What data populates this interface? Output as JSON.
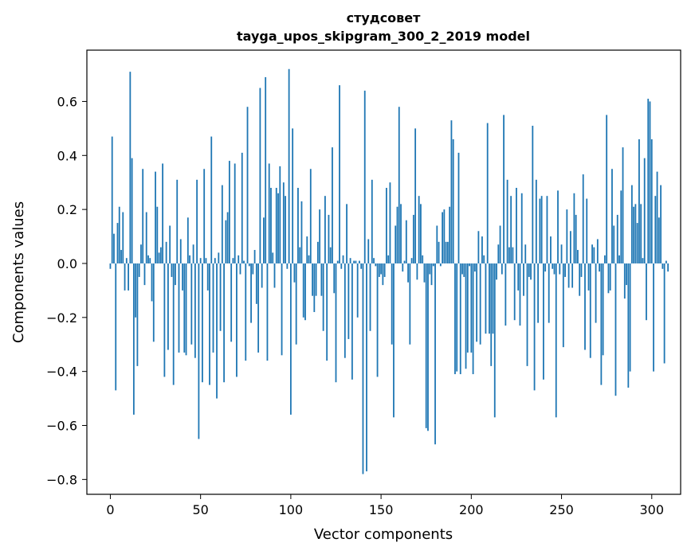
{
  "chart_data": {
    "type": "bar",
    "title": "студсовет",
    "subtitle": "tayga_upos_skipgram_300_2_2019 model",
    "xlabel": "Vector components",
    "ylabel": "Components values",
    "xlim": [
      -13,
      316
    ],
    "ylim": [
      -0.855,
      0.79
    ],
    "xticks": [
      0,
      50,
      100,
      150,
      200,
      250,
      300
    ],
    "yticks": [
      -0.8,
      -0.6,
      -0.4,
      -0.2,
      0.0,
      0.2,
      0.4,
      0.6
    ],
    "ytick_labels": [
      "−0.8",
      "−0.6",
      "−0.4",
      "−0.2",
      "0.0",
      "0.2",
      "0.4",
      "0.6"
    ],
    "bar_color": "#1f77b4",
    "grid": false,
    "x_start": 0,
    "values": [
      -0.02,
      0.47,
      0.11,
      -0.47,
      0.15,
      0.21,
      0.05,
      0.19,
      -0.1,
      0.02,
      -0.1,
      0.71,
      0.39,
      -0.56,
      -0.2,
      -0.38,
      -0.05,
      0.07,
      0.35,
      -0.08,
      0.19,
      0.03,
      0.02,
      -0.14,
      -0.29,
      0.34,
      0.21,
      0.04,
      0.06,
      0.37,
      -0.42,
      0.08,
      -0.32,
      0.14,
      -0.05,
      -0.45,
      -0.08,
      0.31,
      -0.33,
      0.09,
      -0.1,
      -0.33,
      -0.34,
      0.17,
      0.03,
      -0.3,
      0.07,
      -0.35,
      0.31,
      -0.65,
      0.02,
      -0.44,
      0.35,
      0.02,
      -0.1,
      -0.45,
      0.47,
      -0.33,
      0.02,
      -0.5,
      0.04,
      -0.25,
      0.29,
      -0.44,
      0.16,
      0.19,
      0.38,
      -0.29,
      0.02,
      0.37,
      -0.42,
      0.03,
      -0.04,
      0.41,
      0.01,
      -0.36,
      0.58,
      -0.01,
      -0.22,
      -0.04,
      0.05,
      -0.15,
      -0.33,
      0.65,
      -0.09,
      0.17,
      0.69,
      -0.36,
      0.37,
      0.28,
      0.04,
      -0.09,
      0.28,
      0.26,
      0.36,
      -0.34,
      0.3,
      0.25,
      -0.02,
      0.72,
      -0.56,
      0.5,
      -0.07,
      -0.3,
      0.28,
      0.06,
      0.23,
      -0.2,
      -0.21,
      0.1,
      0.03,
      0.35,
      -0.12,
      -0.18,
      -0.12,
      0.08,
      0.2,
      -0.12,
      -0.25,
      0.25,
      -0.36,
      0.18,
      0.06,
      0.43,
      -0.11,
      -0.44,
      0.01,
      0.66,
      -0.02,
      0.03,
      -0.35,
      0.22,
      -0.28,
      0.02,
      -0.43,
      0.01,
      0.01,
      -0.2,
      0.01,
      -0.02,
      -0.78,
      0.64,
      -0.77,
      0.09,
      -0.25,
      0.31,
      0.02,
      -0.01,
      -0.42,
      -0.05,
      -0.04,
      -0.08,
      -0.05,
      0.28,
      0.03,
      0.3,
      -0.3,
      -0.57,
      0.14,
      0.21,
      0.58,
      0.22,
      -0.03,
      0.01,
      0.16,
      -0.07,
      -0.3,
      0.02,
      0.18,
      0.5,
      -0.06,
      0.25,
      0.22,
      0.03,
      -0.07,
      -0.61,
      -0.62,
      -0.04,
      -0.08,
      -0.01,
      -0.67,
      0.14,
      0.08,
      -0.01,
      0.19,
      0.2,
      0.08,
      0.08,
      0.21,
      0.53,
      0.46,
      -0.41,
      -0.4,
      0.41,
      -0.41,
      -0.04,
      -0.05,
      -0.39,
      -0.33,
      -0.01,
      -0.33,
      -0.41,
      -0.03,
      -0.29,
      0.12,
      -0.3,
      0.1,
      0.03,
      -0.26,
      0.52,
      -0.26,
      -0.38,
      -0.26,
      -0.57,
      -0.06,
      0.07,
      0.14,
      -0.04,
      0.55,
      -0.23,
      0.31,
      0.06,
      0.25,
      0.06,
      -0.21,
      0.28,
      -0.1,
      -0.23,
      0.26,
      -0.12,
      0.07,
      -0.38,
      -0.05,
      -0.06,
      0.51,
      -0.47,
      0.31,
      -0.22,
      0.24,
      0.25,
      -0.43,
      -0.03,
      0.25,
      -0.22,
      0.1,
      -0.02,
      -0.04,
      -0.57,
      0.27,
      -0.04,
      0.07,
      -0.31,
      -0.05,
      0.2,
      -0.09,
      0.12,
      -0.09,
      0.26,
      0.18,
      0.05,
      -0.12,
      -0.05,
      0.33,
      -0.32,
      0.24,
      -0.1,
      -0.35,
      0.07,
      0.06,
      -0.22,
      0.09,
      -0.03,
      -0.45,
      -0.34,
      0.03,
      0.55,
      -0.11,
      -0.1,
      0.35,
      0.14,
      -0.49,
      0.18,
      0.03,
      0.27,
      0.43,
      -0.13,
      -0.08,
      -0.46,
      -0.4,
      0.29,
      0.21,
      0.22,
      0.15,
      0.46,
      0.22,
      0.02,
      0.39,
      -0.21,
      0.61,
      0.6,
      0.46,
      -0.4,
      0.25,
      0.34,
      0.17,
      0.29,
      -0.02,
      -0.37,
      0.01,
      -0.03
    ]
  }
}
